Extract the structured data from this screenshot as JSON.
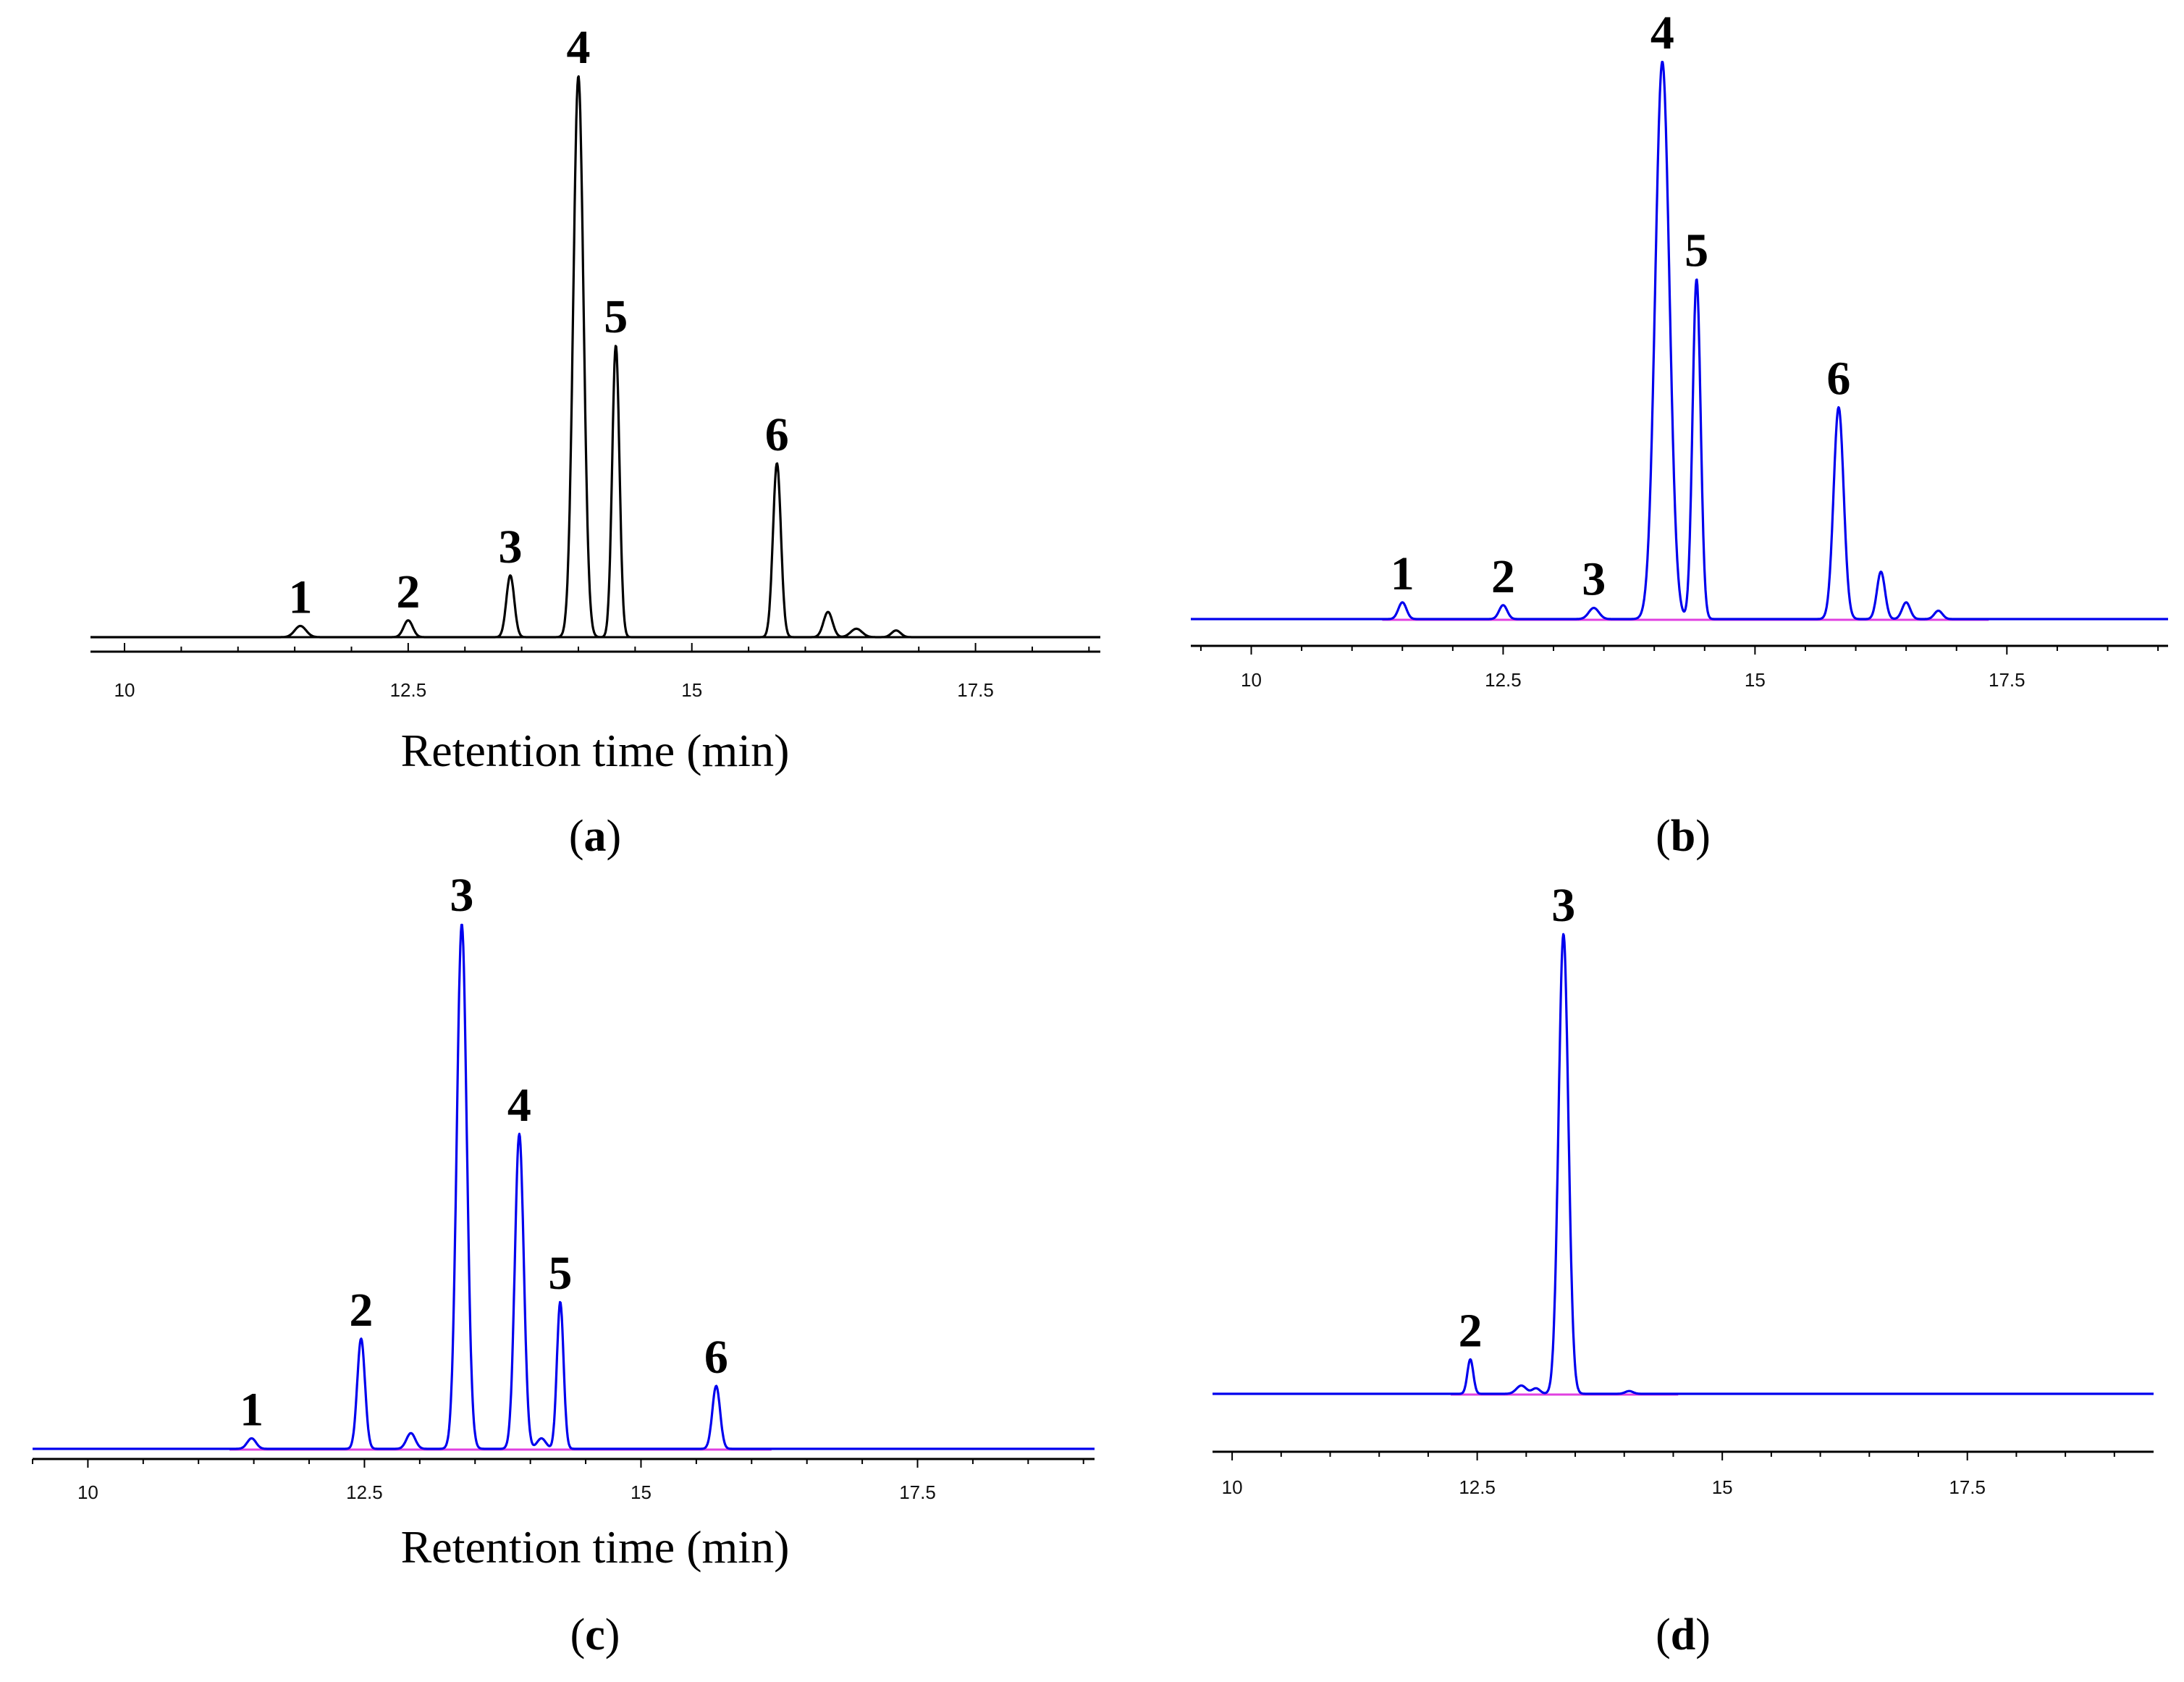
{
  "figure": {
    "panels": [
      {
        "id": "a",
        "letter_text": "a",
        "paren_open": "(",
        "paren_close": ")"
      },
      {
        "id": "b",
        "letter_text": "b",
        "paren_open": "(",
        "paren_close": ")"
      },
      {
        "id": "c",
        "letter_text": "c",
        "paren_open": "(",
        "paren_close": ")"
      },
      {
        "id": "d",
        "letter_text": "d",
        "paren_open": "(",
        "paren_close": ")"
      }
    ]
  },
  "chart_data": [
    {
      "panel": "a",
      "type": "line",
      "title": "",
      "xlabel": "Retention time (min)",
      "ylabel": "",
      "xlim": [
        9.7,
        18.6
      ],
      "x_ticks": [
        "10",
        "12.5",
        "15",
        "17.5"
      ],
      "x_tick_values": [
        10,
        12.5,
        15,
        17.5
      ],
      "line_color": "#000000",
      "baseline_color": "#000000",
      "peaks": [
        {
          "label": "1",
          "rt": 11.55,
          "height": 0.02,
          "width": 0.05
        },
        {
          "label": "2",
          "rt": 12.5,
          "height": 0.03,
          "width": 0.04
        },
        {
          "label": "3",
          "rt": 13.4,
          "height": 0.11,
          "width": 0.035
        },
        {
          "label": "4",
          "rt": 14.0,
          "height": 1.0,
          "width": 0.045
        },
        {
          "label": "5",
          "rt": 14.33,
          "height": 0.52,
          "width": 0.032
        },
        {
          "label": "6",
          "rt": 15.75,
          "height": 0.31,
          "width": 0.035
        }
      ],
      "minor_peaks": [
        {
          "rt": 16.2,
          "height": 0.045,
          "width": 0.04
        },
        {
          "rt": 16.45,
          "height": 0.015,
          "width": 0.05
        },
        {
          "rt": 16.8,
          "height": 0.012,
          "width": 0.04
        }
      ],
      "ylim": [
        0,
        1.0
      ]
    },
    {
      "panel": "b",
      "type": "line",
      "title": "",
      "xlabel": "",
      "ylabel": "",
      "xlim": [
        9.4,
        19.1
      ],
      "x_ticks": [
        "10",
        "12.5",
        "15",
        "17.5"
      ],
      "x_tick_values": [
        10,
        12.5,
        15,
        17.5
      ],
      "line_color": "#0000ee",
      "baseline_color": "#e040e0",
      "peaks": [
        {
          "label": "1",
          "rt": 11.5,
          "height": 0.03,
          "width": 0.04
        },
        {
          "label": "2",
          "rt": 12.5,
          "height": 0.025,
          "width": 0.04
        },
        {
          "label": "3",
          "rt": 13.4,
          "height": 0.02,
          "width": 0.05
        },
        {
          "label": "4",
          "rt": 14.08,
          "height": 1.0,
          "width": 0.07
        },
        {
          "label": "5",
          "rt": 14.42,
          "height": 0.61,
          "width": 0.04
        },
        {
          "label": "6",
          "rt": 15.83,
          "height": 0.38,
          "width": 0.05
        }
      ],
      "minor_peaks": [
        {
          "rt": 16.25,
          "height": 0.085,
          "width": 0.04
        },
        {
          "rt": 16.5,
          "height": 0.03,
          "width": 0.04
        },
        {
          "rt": 16.82,
          "height": 0.015,
          "width": 0.04
        }
      ],
      "ylim": [
        0,
        1.0
      ]
    },
    {
      "panel": "c",
      "type": "line",
      "title": "",
      "xlabel": "Retention time (min)",
      "ylabel": "",
      "xlim": [
        9.5,
        19.1
      ],
      "x_ticks": [
        "10",
        "12.5",
        "15",
        "17.5"
      ],
      "x_tick_values": [
        10,
        12.5,
        15,
        17.5
      ],
      "line_color": "#0000ee",
      "baseline_color": "#e040e0",
      "peaks": [
        {
          "label": "1",
          "rt": 11.48,
          "height": 0.02,
          "width": 0.04
        },
        {
          "label": "2",
          "rt": 12.47,
          "height": 0.21,
          "width": 0.035
        },
        {
          "label": "3",
          "rt": 13.38,
          "height": 1.0,
          "width": 0.045
        },
        {
          "label": "4",
          "rt": 13.9,
          "height": 0.6,
          "width": 0.04
        },
        {
          "label": "5",
          "rt": 14.27,
          "height": 0.28,
          "width": 0.03
        },
        {
          "label": "6",
          "rt": 15.68,
          "height": 0.12,
          "width": 0.035
        }
      ],
      "minor_peaks": [
        {
          "rt": 12.92,
          "height": 0.03,
          "width": 0.04
        },
        {
          "rt": 14.1,
          "height": 0.02,
          "width": 0.04
        }
      ],
      "ylim": [
        0,
        1.0
      ]
    },
    {
      "panel": "d",
      "type": "line",
      "title": "",
      "xlabel": "",
      "ylabel": "",
      "xlim": [
        9.8,
        19.4
      ],
      "x_ticks": [
        "10",
        "12.5",
        "15",
        "17.5"
      ],
      "x_tick_values": [
        10,
        12.5,
        15,
        17.5
      ],
      "line_color": "#0000ee",
      "baseline_color": "#e040e0",
      "peaks": [
        {
          "label": "2",
          "rt": 12.43,
          "height": 0.075,
          "width": 0.03
        },
        {
          "label": "3",
          "rt": 13.38,
          "height": 1.0,
          "width": 0.05
        }
      ],
      "minor_peaks": [
        {
          "rt": 12.95,
          "height": 0.018,
          "width": 0.05
        },
        {
          "rt": 13.1,
          "height": 0.012,
          "width": 0.04
        },
        {
          "rt": 14.05,
          "height": 0.006,
          "width": 0.04
        }
      ],
      "ylim": [
        0,
        1.0
      ]
    }
  ]
}
